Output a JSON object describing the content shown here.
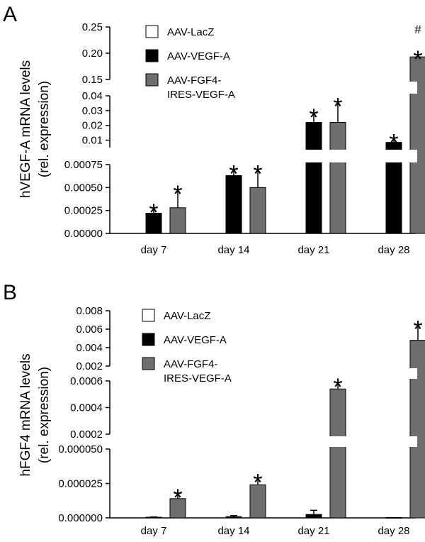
{
  "chart_data": [
    {
      "panel": "A",
      "type": "bar",
      "broken_y_axis": true,
      "ylabel_line1": "hVEGF-A mRNA levels",
      "ylabel_line2": "(rel. expression)",
      "categories": [
        "day 7",
        "day 14",
        "day 21",
        "day 28"
      ],
      "colors": {
        "AAV-LacZ": "#ffffff",
        "AAV-VEGF-A": "#000000",
        "AAV-FGF4-IRES-VEGF-A": "#6e6e6e"
      },
      "legend": [
        {
          "name": "AAV-LacZ",
          "label_lines": [
            "AAV-LacZ"
          ]
        },
        {
          "name": "AAV-VEGF-A",
          "label_lines": [
            "AAV-VEGF-A"
          ]
        },
        {
          "name": "AAV-FGF4-IRES-VEGF-A",
          "label_lines": [
            "AAV-FGF4-",
            "IRES-VEGF-A"
          ]
        }
      ],
      "y_segments": [
        {
          "range": [
            0,
            0.00075
          ],
          "ticks": [
            "0.00000",
            "0.00025",
            "0.00050",
            "0.00075"
          ]
        },
        {
          "range": [
            0.005,
            0.04
          ],
          "ticks": [
            "0.01",
            "0.02",
            "0.03",
            "0.04"
          ]
        },
        {
          "range": [
            0.15,
            0.25
          ],
          "ticks": [
            "0.15",
            "0.20",
            "0.25"
          ]
        }
      ],
      "series": [
        {
          "name": "AAV-LacZ",
          "values": [
            0,
            0,
            0,
            0
          ],
          "errors": [
            0,
            0,
            0,
            0
          ]
        },
        {
          "name": "AAV-VEGF-A",
          "values": [
            0.00022,
            0.00063,
            0.022,
            0.0085
          ],
          "errors": [
            6e-05,
            7e-05,
            0.0065,
            0.003
          ]
        },
        {
          "name": "AAV-FGF4-IRES-VEGF-A",
          "values": [
            0.00028,
            0.0005,
            0.022,
            0.193
          ],
          "errors": [
            0.0002,
            0.0002,
            0.014,
            0.004
          ]
        }
      ],
      "annotations": [
        {
          "category": "day 7",
          "series": "AAV-VEGF-A",
          "text": "*"
        },
        {
          "category": "day 7",
          "series": "AAV-FGF4-IRES-VEGF-A",
          "text": "*"
        },
        {
          "category": "day 14",
          "series": "AAV-VEGF-A",
          "text": "*"
        },
        {
          "category": "day 14",
          "series": "AAV-FGF4-IRES-VEGF-A",
          "text": "*"
        },
        {
          "category": "day 21",
          "series": "AAV-VEGF-A",
          "text": "*"
        },
        {
          "category": "day 21",
          "series": "AAV-FGF4-IRES-VEGF-A",
          "text": "*"
        },
        {
          "category": "day 28",
          "series": "AAV-VEGF-A",
          "text": "*"
        },
        {
          "category": "day 28",
          "series": "AAV-FGF4-IRES-VEGF-A",
          "text": "*"
        },
        {
          "category": "day 28",
          "series": "AAV-FGF4-IRES-VEGF-A",
          "text": "#"
        }
      ]
    },
    {
      "panel": "B",
      "type": "bar",
      "broken_y_axis": true,
      "ylabel_line1": "hFGF4 mRNA levels",
      "ylabel_line2": "(rel. expression)",
      "categories": [
        "day 7",
        "day 14",
        "day 21",
        "day 28"
      ],
      "colors": {
        "AAV-LacZ": "#ffffff",
        "AAV-VEGF-A": "#000000",
        "AAV-FGF4-IRES-VEGF-A": "#6e6e6e"
      },
      "legend": [
        {
          "name": "AAV-LacZ",
          "label_lines": [
            "AAV-LacZ"
          ]
        },
        {
          "name": "AAV-VEGF-A",
          "label_lines": [
            "AAV-VEGF-A"
          ]
        },
        {
          "name": "AAV-FGF4-IRES-VEGF-A",
          "label_lines": [
            "AAV-FGF4-",
            "IRES-VEGF-A"
          ]
        }
      ],
      "y_segments": [
        {
          "range": [
            0,
            5e-05
          ],
          "ticks": [
            "0.000000",
            "0.000025",
            "0.000050"
          ]
        },
        {
          "range": [
            0.0002,
            0.0006
          ],
          "ticks": [
            "0.0002",
            "0.0004",
            "0.0006"
          ]
        },
        {
          "range": [
            0.002,
            0.008
          ],
          "ticks": [
            "0.002",
            "0.004",
            "0.006",
            "0.008"
          ]
        }
      ],
      "series": [
        {
          "name": "AAV-LacZ",
          "values": [
            0,
            0,
            0,
            0
          ],
          "errors": [
            0,
            0,
            0,
            0
          ]
        },
        {
          "name": "AAV-VEGF-A",
          "values": [
            5e-07,
            9e-07,
            2.5e-06,
            3e-07
          ],
          "errors": [
            2e-07,
            8e-07,
            3e-06,
            0
          ]
        },
        {
          "name": "AAV-FGF4-IRES-VEGF-A",
          "values": [
            1.4e-05,
            2.4e-05,
            0.00054,
            0.0048
          ],
          "errors": [
            4e-06,
            5e-06,
            5e-05,
            0.0017
          ]
        }
      ],
      "annotations": [
        {
          "category": "day 7",
          "series": "AAV-FGF4-IRES-VEGF-A",
          "text": "*"
        },
        {
          "category": "day 14",
          "series": "AAV-FGF4-IRES-VEGF-A",
          "text": "*"
        },
        {
          "category": "day 21",
          "series": "AAV-FGF4-IRES-VEGF-A",
          "text": "*"
        },
        {
          "category": "day 28",
          "series": "AAV-FGF4-IRES-VEGF-A",
          "text": "*"
        }
      ]
    }
  ]
}
